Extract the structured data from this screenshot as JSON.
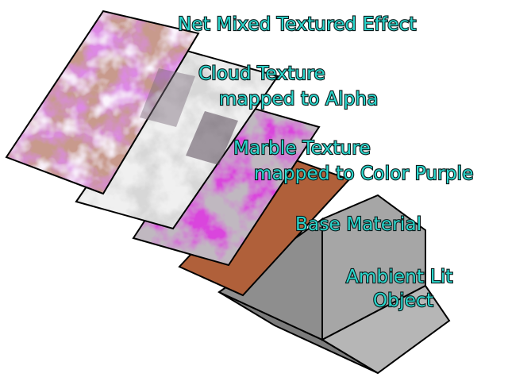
{
  "labels": {
    "net_effect": "Net Mixed Textured Effect",
    "cloud_line1": "Cloud Texture",
    "cloud_line2": "mapped to Alpha",
    "marble_line1": "Marble Texture",
    "marble_line2": "mapped to Color Purple",
    "base_material": "Base Material",
    "ambient_line1": "Ambient Lit",
    "ambient_line2": "Object"
  },
  "colors": {
    "label_fill": "#2ad6cc",
    "label_outline": "#0b1a1a",
    "marble_purple": "#b020b8",
    "base_material": "#b0603a",
    "cube_front": "#a8a8a8",
    "cube_side": "#8a8a8a",
    "cube_top": "#c4c4c4"
  }
}
